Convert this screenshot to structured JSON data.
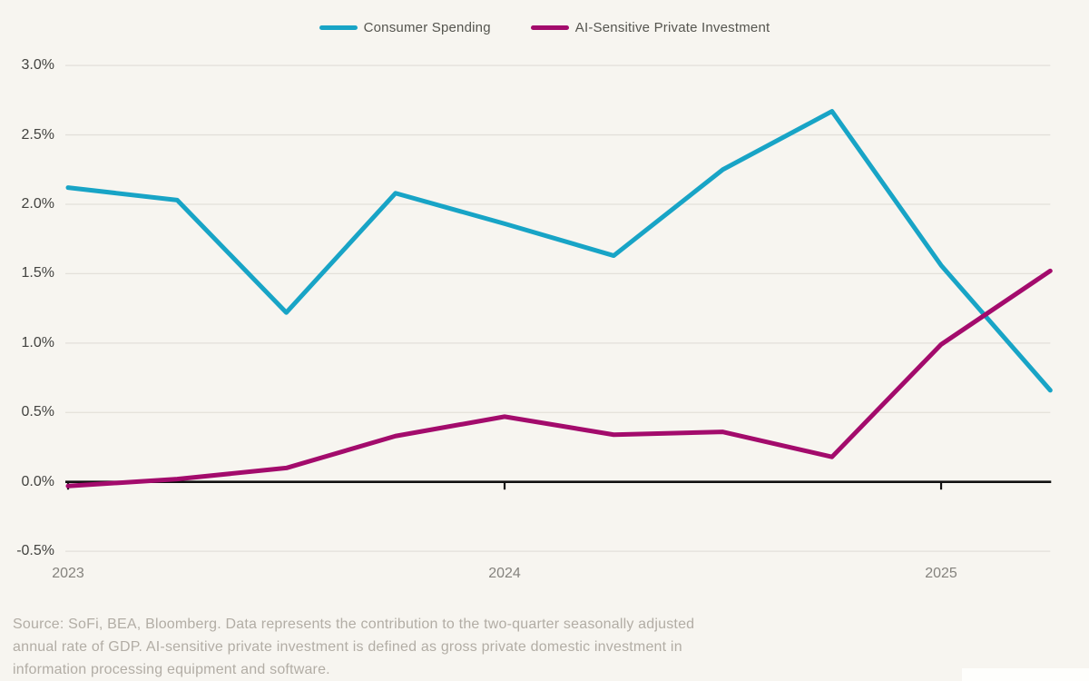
{
  "page": {
    "background": "#f7f5f0"
  },
  "chart_data": {
    "type": "line",
    "title": "",
    "xlabel": "",
    "ylabel": "",
    "grid": "horizontal",
    "legend_position": "top",
    "ylim": [
      -0.5,
      3.0
    ],
    "categories": [
      "2023 Q1",
      "2023 Q2",
      "2023 Q3",
      "2023 Q4",
      "2024 Q1",
      "2024 Q2",
      "2024 Q3",
      "2024 Q4",
      "2025 Q1",
      "2025 Q2"
    ],
    "series": [
      {
        "name": "Consumer Spending",
        "color": "#18a4c6",
        "values": [
          2.12,
          2.03,
          1.22,
          2.08,
          1.86,
          1.63,
          2.25,
          2.67,
          1.56,
          0.66
        ]
      },
      {
        "name": "AI-Sensitive Private Investment",
        "color": "#a30b6c",
        "values": [
          -0.03,
          0.02,
          0.1,
          0.33,
          0.47,
          0.34,
          0.36,
          0.18,
          0.99,
          1.52
        ]
      }
    ],
    "y_ticks": [
      {
        "label": "3.0%",
        "value": 3.0
      },
      {
        "label": "2.5%",
        "value": 2.5
      },
      {
        "label": "2.0%",
        "value": 2.0
      },
      {
        "label": "1.5%",
        "value": 1.5
      },
      {
        "label": "1.0%",
        "value": 1.0
      },
      {
        "label": "0.5%",
        "value": 0.5
      },
      {
        "label": "0.0%",
        "value": 0.0
      },
      {
        "label": "-0.5%",
        "value": -0.5
      }
    ],
    "x_ticks": [
      {
        "label": "2023",
        "index": 0
      },
      {
        "label": "2024",
        "index": 4
      },
      {
        "label": "2025",
        "index": 8
      }
    ],
    "colors": {
      "gridline": "#e3e0da",
      "axis": "#111111",
      "y_label": "#434340",
      "x_label": "#85837e"
    }
  },
  "source_note": {
    "lines": [
      "Source: SoFi, BEA, Bloomberg. Data represents the contribution to the two-quarter seasonally adjusted",
      "annual rate of GDP. AI-sensitive private investment is defined as gross private domestic investment in",
      "information processing equipment and software."
    ]
  }
}
